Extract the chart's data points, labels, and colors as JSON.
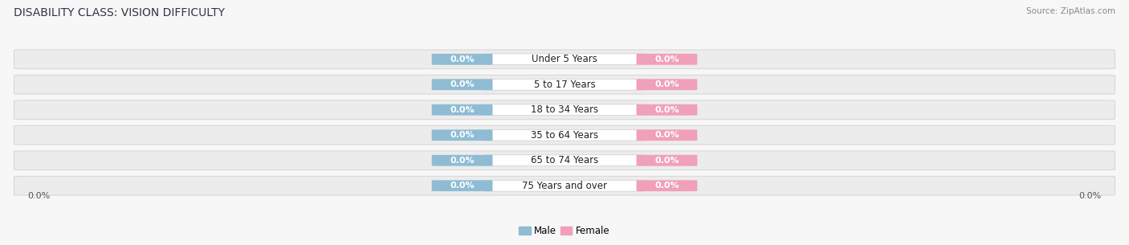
{
  "title": "DISABILITY CLASS: VISION DIFFICULTY",
  "source": "Source: ZipAtlas.com",
  "categories": [
    "Under 5 Years",
    "5 to 17 Years",
    "18 to 34 Years",
    "35 to 64 Years",
    "65 to 74 Years",
    "75 Years and over"
  ],
  "male_values": [
    0.0,
    0.0,
    0.0,
    0.0,
    0.0,
    0.0
  ],
  "female_values": [
    0.0,
    0.0,
    0.0,
    0.0,
    0.0,
    0.0
  ],
  "male_color": "#8fbcd4",
  "female_color": "#f0a0b8",
  "row_bg_color": "#eeeeee",
  "fig_bg_color": "#f7f7f7",
  "title_fontsize": 10,
  "source_fontsize": 7.5,
  "label_fontsize": 8.5,
  "bar_label_fontsize": 8,
  "figsize": [
    14.06,
    3.05
  ],
  "dpi": 100
}
